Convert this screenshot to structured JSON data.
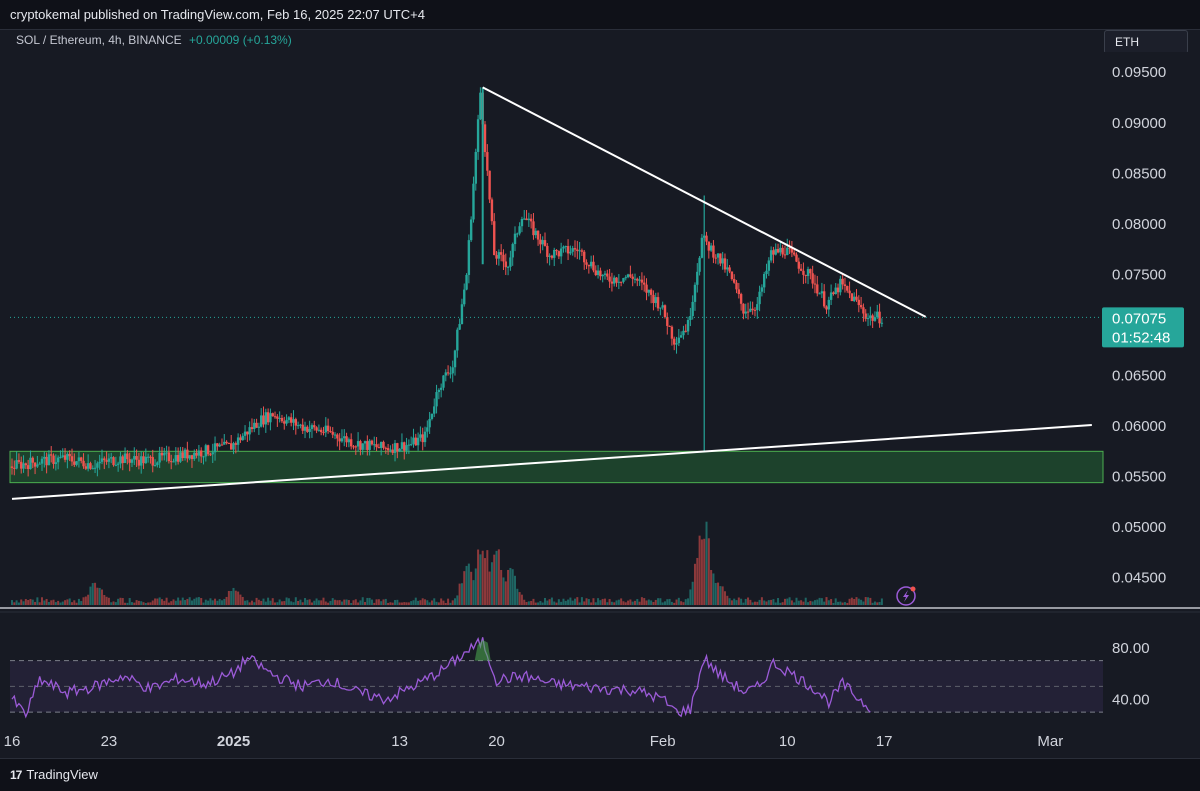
{
  "header": {
    "published": "cryptokemal published on TradingView.com, Feb 16, 2025 22:07 UTC+4",
    "symbol": "SOL / Ethereum, 4h, BINANCE",
    "change": "+0.00009 (+0.13%)",
    "currency": "ETH"
  },
  "footer": {
    "brand": "TradingView",
    "logo": "17"
  },
  "colors": {
    "up": "#26a69a",
    "down": "#ef5350",
    "rsi": "#9c5bd8",
    "support_zone": "#1f4a2e",
    "price_tag": "#26a69a"
  },
  "icons": {
    "alert": "lightning-bolt-icon"
  },
  "chart_data": {
    "type": "candlestick",
    "y_ticks": [
      "0.09500",
      "0.09000",
      "0.08500",
      "0.08000",
      "0.07500",
      "0.06500",
      "0.06000",
      "0.05500",
      "0.05000",
      "0.04500"
    ],
    "ylim": [
      0.042,
      0.097
    ],
    "x_ticks": [
      {
        "label": "16",
        "bold": false
      },
      {
        "label": "23",
        "bold": false
      },
      {
        "label": "2025",
        "bold": true
      },
      {
        "label": "13",
        "bold": false
      },
      {
        "label": "20",
        "bold": false
      },
      {
        "label": "Feb",
        "bold": false
      },
      {
        "label": "10",
        "bold": false
      },
      {
        "label": "17",
        "bold": false
      },
      {
        "label": "Mar",
        "bold": false
      }
    ],
    "last_price": "0.07075",
    "countdown": "01:52:48",
    "price_path": [
      [
        "2024-12-16",
        0.056
      ],
      [
        "2024-12-18",
        0.0565
      ],
      [
        "2024-12-20",
        0.0568
      ],
      [
        "2024-12-22",
        0.0562
      ],
      [
        "2024-12-24",
        0.0568
      ],
      [
        "2024-12-26",
        0.0566
      ],
      [
        "2024-12-28",
        0.057
      ],
      [
        "2024-12-30",
        0.0575
      ],
      [
        "2025-01-01",
        0.058
      ],
      [
        "2025-01-03",
        0.0605
      ],
      [
        "2025-01-04",
        0.0612
      ],
      [
        "2025-01-06",
        0.06
      ],
      [
        "2025-01-08",
        0.0594
      ],
      [
        "2025-01-10",
        0.0583
      ],
      [
        "2025-01-12",
        0.0578
      ],
      [
        "2025-01-14",
        0.0582
      ],
      [
        "2025-01-15",
        0.059
      ],
      [
        "2025-01-16",
        0.064
      ],
      [
        "2025-01-17",
        0.066
      ],
      [
        "2025-01-18",
        0.075
      ],
      [
        "2025-01-19",
        0.093
      ],
      [
        "2025-01-20",
        0.077
      ],
      [
        "2025-01-21",
        0.076
      ],
      [
        "2025-01-22",
        0.081
      ],
      [
        "2025-01-24",
        0.077
      ],
      [
        "2025-01-26",
        0.0775
      ],
      [
        "2025-01-28",
        0.0745
      ],
      [
        "2025-01-30",
        0.0748
      ],
      [
        "2025-02-01",
        0.072
      ],
      [
        "2025-02-02",
        0.0685
      ],
      [
        "2025-02-03",
        0.07
      ],
      [
        "2025-02-04",
        0.0785
      ],
      [
        "2025-02-05",
        0.077
      ],
      [
        "2025-02-06",
        0.075
      ],
      [
        "2025-02-07",
        0.0715
      ],
      [
        "2025-02-08",
        0.072
      ],
      [
        "2025-02-09",
        0.077
      ],
      [
        "2025-02-10",
        0.0775
      ],
      [
        "2025-02-11",
        0.076
      ],
      [
        "2025-02-12",
        0.0745
      ],
      [
        "2025-02-13",
        0.072
      ],
      [
        "2025-02-14",
        0.074
      ],
      [
        "2025-02-15",
        0.0725
      ],
      [
        "2025-02-16",
        0.07075
      ]
    ],
    "descending_trendline": [
      [
        "2025-01-19",
        0.0935
      ],
      [
        "2025-02-20",
        0.0708
      ]
    ],
    "ascending_trendline": [
      [
        "2024-12-16",
        0.0528
      ],
      [
        "2025-03-04",
        0.0601
      ]
    ],
    "support_zone": [
      0.0544,
      0.0575
    ],
    "rsi": {
      "y_ticks": [
        "80.00",
        "40.00"
      ],
      "ylim": [
        20,
        100
      ],
      "band": [
        30,
        70
      ],
      "path": [
        [
          "2024-12-16",
          40
        ],
        [
          "2024-12-17",
          28
        ],
        [
          "2024-12-18",
          55
        ],
        [
          "2024-12-20",
          45
        ],
        [
          "2024-12-22",
          50
        ],
        [
          "2024-12-24",
          58
        ],
        [
          "2024-12-26",
          48
        ],
        [
          "2024-12-28",
          56
        ],
        [
          "2024-12-30",
          52
        ],
        [
          "2025-01-01",
          60
        ],
        [
          "2025-01-02",
          72
        ],
        [
          "2025-01-04",
          58
        ],
        [
          "2025-01-06",
          50
        ],
        [
          "2025-01-08",
          55
        ],
        [
          "2025-01-10",
          45
        ],
        [
          "2025-01-12",
          40
        ],
        [
          "2025-01-14",
          50
        ],
        [
          "2025-01-16",
          62
        ],
        [
          "2025-01-18",
          78
        ],
        [
          "2025-01-19",
          85
        ],
        [
          "2025-01-20",
          55
        ],
        [
          "2025-01-22",
          58
        ],
        [
          "2025-01-24",
          52
        ],
        [
          "2025-01-26",
          50
        ],
        [
          "2025-01-28",
          48
        ],
        [
          "2025-01-30",
          47
        ],
        [
          "2025-02-01",
          40
        ],
        [
          "2025-02-02",
          30
        ],
        [
          "2025-02-03",
          32
        ],
        [
          "2025-02-04",
          72
        ],
        [
          "2025-02-05",
          60
        ],
        [
          "2025-02-07",
          45
        ],
        [
          "2025-02-08",
          50
        ],
        [
          "2025-02-09",
          68
        ],
        [
          "2025-02-10",
          62
        ],
        [
          "2025-02-11",
          55
        ],
        [
          "2025-02-12",
          48
        ],
        [
          "2025-02-13",
          38
        ],
        [
          "2025-02-14",
          52
        ],
        [
          "2025-02-15",
          42
        ],
        [
          "2025-02-16",
          33
        ]
      ]
    },
    "volume_spikes": [
      [
        "2025-01-18",
        0.55
      ],
      [
        "2025-01-19",
        1.0
      ],
      [
        "2025-01-20",
        0.75
      ],
      [
        "2025-01-21",
        0.5
      ],
      [
        "2025-02-04",
        1.1
      ],
      [
        "2025-02-05",
        0.35
      ],
      [
        "2025-01-01",
        0.25
      ],
      [
        "2024-12-22",
        0.3
      ]
    ]
  }
}
